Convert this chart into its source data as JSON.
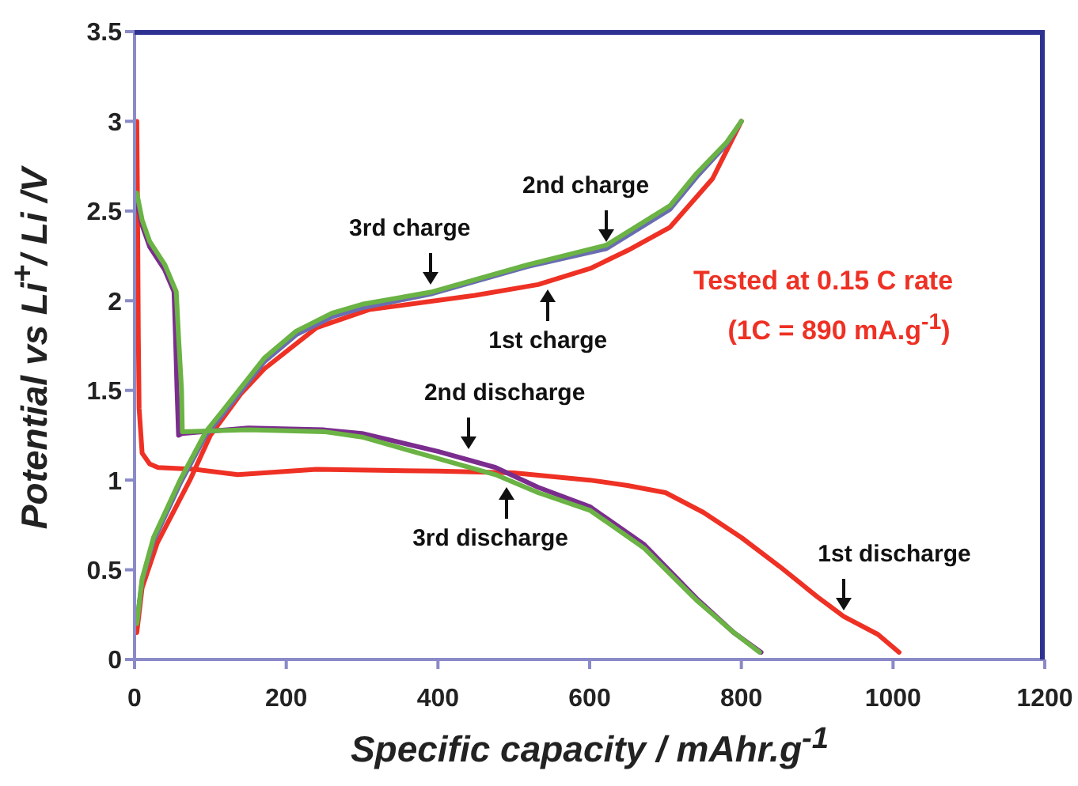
{
  "chart_data": {
    "type": "line",
    "xlabel": "Specific capacity / mAhr.g$^{-1}$",
    "ylabel": "Potential vs Li$^{+}$/ Li /V",
    "xlim": [
      0,
      1200
    ],
    "xticks": [
      0,
      200,
      400,
      600,
      800,
      1000,
      1200
    ],
    "ylim": [
      0,
      3.5
    ],
    "yticks": [
      0,
      0.5,
      1,
      1.5,
      2,
      2.5,
      3,
      3.5
    ],
    "grid": false,
    "marker": "none",
    "line_style": "solid",
    "series": [
      {
        "color": "#ee3124",
        "x": [
          3,
          4,
          5,
          6,
          10,
          20,
          31,
          80,
          136,
          240,
          400,
          500,
          600,
          650,
          700,
          750,
          800,
          850,
          900,
          935,
          980,
          1008
        ],
        "values": [
          3.0,
          2.5,
          1.8,
          1.4,
          1.15,
          1.09,
          1.07,
          1.06,
          1.03,
          1.06,
          1.05,
          1.04,
          1.0,
          0.97,
          0.93,
          0.82,
          0.68,
          0.52,
          0.35,
          0.24,
          0.14,
          0.04
        ]
      },
      {
        "color": "#ee3124",
        "x": [
          3,
          10,
          30,
          73,
          100,
          140,
          171,
          240,
          309,
          449,
          532,
          601,
          650,
          706,
          762,
          800
        ],
        "values": [
          0.15,
          0.4,
          0.65,
          1.0,
          1.25,
          1.48,
          1.62,
          1.85,
          1.95,
          2.03,
          2.09,
          2.18,
          2.28,
          2.41,
          2.68,
          3.0
        ]
      },
      {
        "color": "#7b2d8e",
        "x": [
          3,
          10,
          20,
          40,
          52,
          54,
          56,
          58,
          63,
          150,
          250,
          300,
          350,
          400,
          476,
          532,
          601,
          672,
          741,
          790,
          826
        ],
        "values": [
          2.55,
          2.42,
          2.3,
          2.17,
          2.05,
          1.8,
          1.5,
          1.25,
          1.26,
          1.29,
          1.28,
          1.26,
          1.21,
          1.16,
          1.07,
          0.96,
          0.85,
          0.64,
          0.34,
          0.15,
          0.04
        ]
      },
      {
        "color": "#6a6db0",
        "x": [
          3,
          10,
          25,
          60,
          94,
          115,
          171,
          213,
          260,
          300,
          393,
          518,
          622,
          706,
          741,
          780,
          800
        ],
        "values": [
          0.2,
          0.44,
          0.66,
          0.98,
          1.25,
          1.36,
          1.66,
          1.81,
          1.91,
          1.96,
          2.04,
          2.19,
          2.29,
          2.51,
          2.69,
          2.87,
          3.0
        ]
      },
      {
        "color": "#6ab344",
        "x": [
          3,
          10,
          20,
          40,
          55,
          58,
          62,
          63,
          150,
          250,
          300,
          350,
          400,
          476,
          532,
          601,
          672,
          741,
          790,
          824
        ],
        "values": [
          2.6,
          2.45,
          2.33,
          2.2,
          2.05,
          1.8,
          1.5,
          1.27,
          1.28,
          1.27,
          1.24,
          1.18,
          1.12,
          1.03,
          0.93,
          0.83,
          0.62,
          0.33,
          0.15,
          0.04
        ]
      },
      {
        "color": "#6ab344",
        "x": [
          3,
          10,
          25,
          60,
          94,
          115,
          171,
          213,
          260,
          300,
          393,
          518,
          622,
          706,
          741,
          780,
          800
        ],
        "values": [
          0.2,
          0.45,
          0.68,
          1.0,
          1.27,
          1.38,
          1.68,
          1.83,
          1.93,
          1.98,
          2.05,
          2.2,
          2.31,
          2.53,
          2.71,
          2.88,
          3.0
        ]
      }
    ],
    "annotations": [
      {
        "text": "3rd charge",
        "x": 390,
        "y": 2.05
      },
      {
        "text": "2nd charge",
        "x": 622,
        "y": 2.29
      },
      {
        "text": "1st charge",
        "x": 545,
        "y": 2.1
      },
      {
        "text": "2nd discharge",
        "x": 440,
        "y": 1.14
      },
      {
        "text": "3rd discharge",
        "x": 490,
        "y": 1.0
      },
      {
        "text": "1st discharge",
        "x": 935,
        "y": 0.24
      },
      "Tested at 0.15 C rate",
      "(1C = 890 mA.g$^{-1}$)"
    ]
  }
}
